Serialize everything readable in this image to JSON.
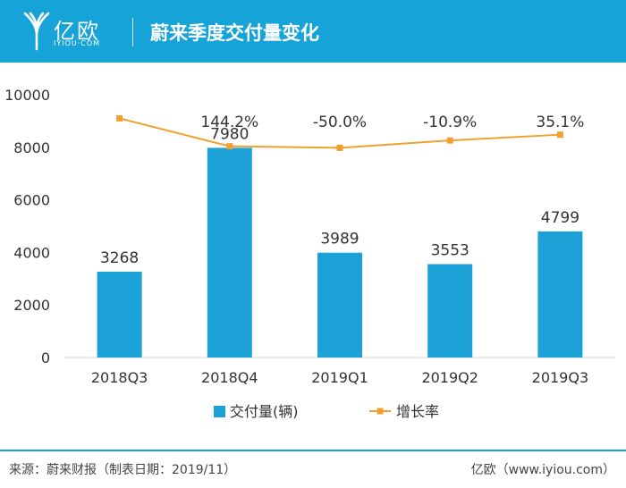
{
  "header": {
    "brand_name": "亿欧",
    "brand_domain": "IYIOU·COM",
    "title": "蔚来季度交付量变化",
    "brand_color": "#16a4d8"
  },
  "chart_data": {
    "type": "bar",
    "title": "",
    "categories": [
      "2018Q3",
      "2018Q4",
      "2019Q1",
      "2019Q2",
      "2019Q3"
    ],
    "ylim": [
      0,
      10000
    ],
    "yticks": [
      0,
      2000,
      4000,
      6000,
      8000,
      10000
    ],
    "grid": false,
    "legend_position": "bottom",
    "series": [
      {
        "name": "交付量(辆)",
        "type": "bar",
        "color": "#1ba1d6",
        "values": [
          3268,
          7980,
          3989,
          3553,
          4799
        ],
        "labels": [
          "3268",
          "7980",
          "3989",
          "3553",
          "4799"
        ]
      },
      {
        "name": "增长率",
        "type": "line",
        "color": "#f0a030",
        "plot_values": [
          9100,
          8040,
          7980,
          8260,
          8480
        ],
        "labels": [
          "144.2%",
          "-50.0%",
          "-10.9%",
          "35.1%"
        ]
      }
    ]
  },
  "footer": {
    "source": "来源：蔚来财报（制表日期：2019/11）",
    "credit": "亿欧（www.iyiou.com）"
  }
}
